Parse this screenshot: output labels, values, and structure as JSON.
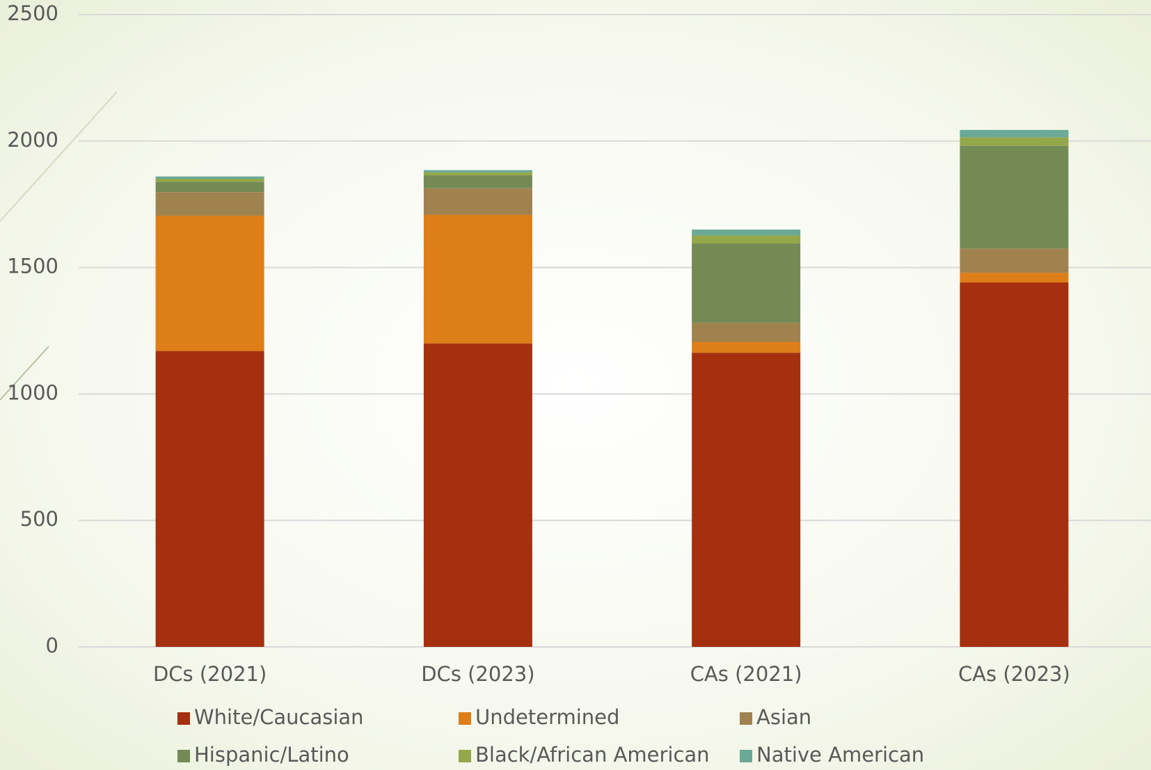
{
  "chart_data": {
    "type": "stacked_bar",
    "categories": [
      "DCs (2021)",
      "DCs (2023)",
      "CAs (2021)",
      "CAs (2023)"
    ],
    "series": [
      {
        "name": "White/Caucasian",
        "color": "#a5300f",
        "values": [
          1170,
          1200,
          1163,
          1441
        ]
      },
      {
        "name": "Undetermined",
        "color": "#de7e18",
        "values": [
          535,
          508,
          43,
          38
        ]
      },
      {
        "name": "Asian",
        "color": "#a0824f",
        "values": [
          93,
          105,
          76,
          96
        ]
      },
      {
        "name": "Hispanic/Latino",
        "color": "#738a55",
        "values": [
          41,
          52,
          313,
          406
        ]
      },
      {
        "name": "Black/African American",
        "color": "#94a74a",
        "values": [
          12,
          11,
          32,
          34
        ]
      },
      {
        "name": "Native American",
        "color": "#6aa995",
        "values": [
          9,
          9,
          23,
          29
        ]
      }
    ],
    "ylim": [
      0,
      2500
    ],
    "yticks": [
      0,
      500,
      1000,
      1500,
      2000,
      2500
    ],
    "grid": true,
    "legend": "bottom"
  }
}
